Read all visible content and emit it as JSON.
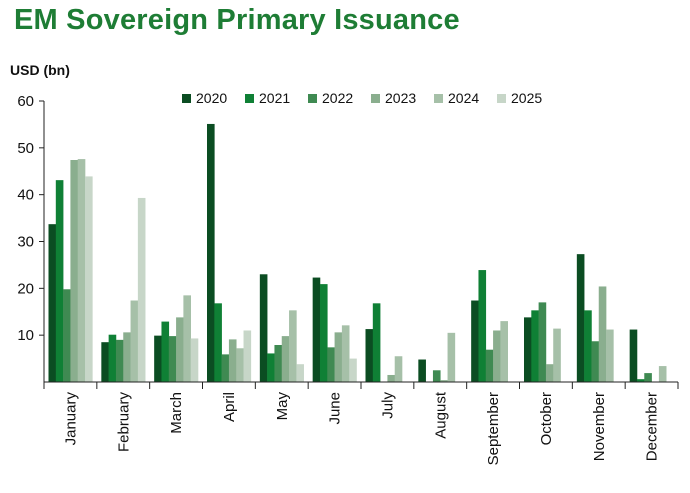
{
  "colors": {
    "title": "#1e7d35",
    "series": [
      "#0b4d22",
      "#0f8035",
      "#3f8a52",
      "#8aae8e",
      "#a6c0a8",
      "#c7d6c8"
    ]
  },
  "chart_data": {
    "type": "bar",
    "title": "EM Sovereign Primary Issuance",
    "ylabel": "USD (bn)",
    "xlabel": "",
    "ylim": [
      0,
      60
    ],
    "yticks": [
      10,
      20,
      30,
      40,
      50,
      60
    ],
    "grid": false,
    "legend_position": "top-center",
    "categories": [
      "January",
      "February",
      "March",
      "April",
      "May",
      "June",
      "July",
      "August",
      "September",
      "October",
      "November",
      "December"
    ],
    "series": [
      {
        "name": "2020",
        "values": [
          33.7,
          8.5,
          9.9,
          55.1,
          23.0,
          22.3,
          11.3,
          4.8,
          17.4,
          13.8,
          27.3,
          11.2
        ]
      },
      {
        "name": "2021",
        "values": [
          43.1,
          10.1,
          12.9,
          16.8,
          6.1,
          20.9,
          16.8,
          0,
          23.9,
          15.3,
          15.3,
          0.6
        ]
      },
      {
        "name": "2022",
        "values": [
          19.8,
          9.0,
          9.8,
          5.9,
          7.9,
          7.4,
          0,
          2.5,
          6.9,
          17.0,
          8.7,
          1.9
        ]
      },
      {
        "name": "2023",
        "values": [
          47.4,
          10.6,
          13.8,
          9.1,
          9.8,
          10.6,
          1.5,
          0.4,
          11.0,
          3.8,
          20.4,
          0
        ]
      },
      {
        "name": "2024",
        "values": [
          47.6,
          17.4,
          18.5,
          7.2,
          15.3,
          12.1,
          5.5,
          10.5,
          13.0,
          11.4,
          11.2,
          3.4
        ]
      },
      {
        "name": "2025",
        "values": [
          43.9,
          39.3,
          9.3,
          11.0,
          3.8,
          5.0,
          0,
          0,
          0,
          0,
          0,
          0
        ]
      }
    ]
  }
}
